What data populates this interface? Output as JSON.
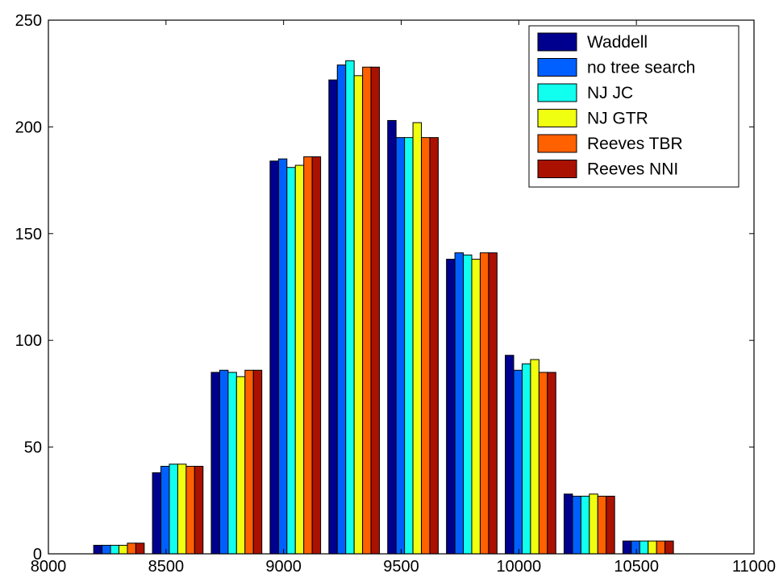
{
  "chart_data": {
    "type": "bar",
    "title": "",
    "xlabel": "",
    "ylabel": "",
    "xlim": [
      8000,
      11000
    ],
    "ylim": [
      0,
      250
    ],
    "xticks": [
      8000,
      8500,
      9000,
      9500,
      10000,
      10500,
      11000
    ],
    "yticks": [
      0,
      50,
      100,
      150,
      200,
      250
    ],
    "bin_centers": [
      8300,
      8550,
      8800,
      9050,
      9300,
      9550,
      9800,
      10050,
      10300,
      10550
    ],
    "bin_width": 250,
    "legend_position": "top-right",
    "grid": false,
    "series": [
      {
        "name": "Waddell",
        "color": "#00008f",
        "values": [
          4,
          38,
          85,
          184,
          222,
          203,
          138,
          93,
          28,
          6
        ]
      },
      {
        "name": "no tree search",
        "color": "#0060ff",
        "values": [
          4,
          41,
          86,
          185,
          229,
          195,
          141,
          86,
          27,
          6
        ]
      },
      {
        "name": "NJ JC",
        "color": "#10ffef",
        "values": [
          4,
          42,
          85,
          181,
          231,
          195,
          140,
          89,
          27,
          6
        ]
      },
      {
        "name": "NJ GTR",
        "color": "#f0ff10",
        "values": [
          4,
          42,
          83,
          182,
          224,
          202,
          138,
          91,
          28,
          6
        ]
      },
      {
        "name": "Reeves TBR",
        "color": "#ff6000",
        "values": [
          5,
          41,
          86,
          186,
          228,
          195,
          141,
          85,
          27,
          6
        ]
      },
      {
        "name": "Reeves NNI",
        "color": "#aa1100",
        "values": [
          5,
          41,
          86,
          186,
          228,
          195,
          141,
          85,
          27,
          6
        ]
      }
    ]
  }
}
